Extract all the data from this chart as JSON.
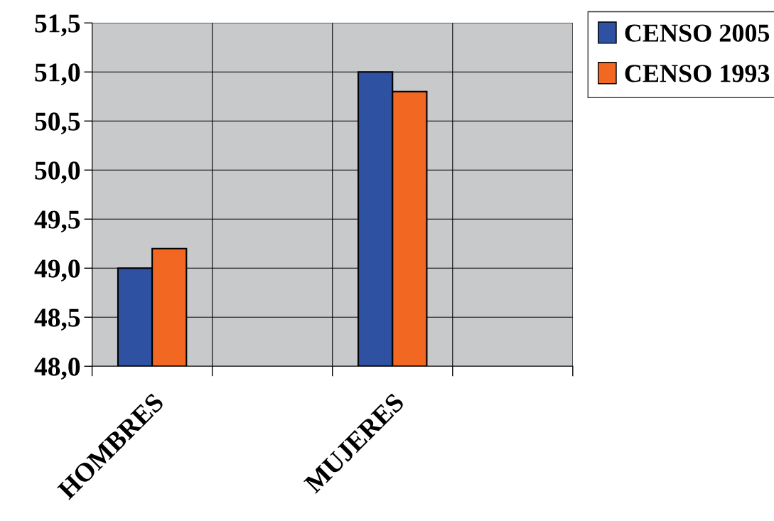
{
  "chart_data": {
    "type": "bar",
    "categories": [
      "HOMBRES",
      null,
      "MUJERES",
      null
    ],
    "series": [
      {
        "name": "CENSO 2005",
        "color": "#2e51a2",
        "values": [
          49.0,
          null,
          51.0,
          null
        ]
      },
      {
        "name": "CENSO 1993",
        "color": "#f26722",
        "values": [
          49.2,
          null,
          50.8,
          null
        ]
      }
    ],
    "ylim": [
      48.0,
      51.5
    ],
    "yticks": [
      {
        "value": 48.0,
        "label": "48,0"
      },
      {
        "value": 48.5,
        "label": "48,5"
      },
      {
        "value": 49.0,
        "label": "49,0"
      },
      {
        "value": 49.5,
        "label": "49,5"
      },
      {
        "value": 50.0,
        "label": "50,0"
      },
      {
        "value": 50.5,
        "label": "50,5"
      },
      {
        "value": 51.0,
        "label": "51,0"
      },
      {
        "value": 51.5,
        "label": "51,5"
      }
    ],
    "grid": true,
    "legend": "top right"
  }
}
